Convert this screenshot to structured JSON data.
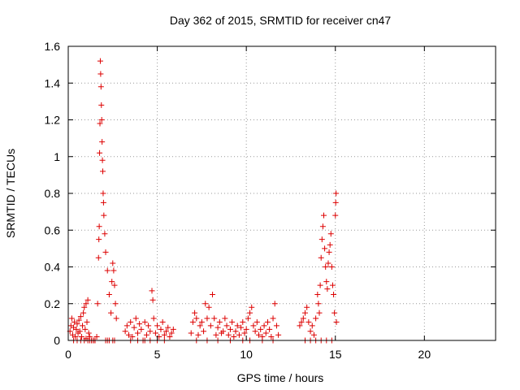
{
  "chart_data": {
    "type": "scatter",
    "title": "Day 362 of 2015, SRMTID for receiver cn47",
    "xlabel": "GPS time / hours",
    "ylabel": "SRMTID / TECUs",
    "xlim": [
      0,
      24
    ],
    "ylim": [
      0,
      1.6
    ],
    "xticks": [
      0,
      5,
      10,
      15,
      20
    ],
    "xtick_labels": [
      "0",
      "5",
      "10",
      "15",
      "20"
    ],
    "yticks": [
      0,
      0.2,
      0.4,
      0.6,
      0.8,
      1.0,
      1.2,
      1.4,
      1.6
    ],
    "ytick_labels": [
      "0",
      "0.2",
      "0.4",
      "0.6",
      "0.8",
      "1",
      "1.2",
      "1.4",
      "1.6"
    ],
    "grid": true,
    "marker": "+",
    "color": "#dd0000",
    "series": [
      {
        "name": "SRMTID",
        "x": [
          0.1,
          0.15,
          0.2,
          0.25,
          0.3,
          0.35,
          0.4,
          0.45,
          0.5,
          0.55,
          0.6,
          0.65,
          0.7,
          0.75,
          0.8,
          0.85,
          0.9,
          0.95,
          1.0,
          1.05,
          1.1,
          1.15,
          1.2,
          1.3,
          1.4,
          1.5,
          1.6,
          1.65,
          1.7,
          1.72,
          1.74,
          1.76,
          1.78,
          1.8,
          1.82,
          1.84,
          1.86,
          1.88,
          1.9,
          1.92,
          1.94,
          1.96,
          1.98,
          2.0,
          2.05,
          2.1,
          2.2,
          2.3,
          2.4,
          2.45,
          2.5,
          2.55,
          2.6,
          2.65,
          2.7,
          0.3,
          0.5,
          0.7,
          0.9,
          1.0,
          1.1,
          1.2,
          1.3,
          1.4,
          1.5,
          2.1,
          2.2,
          2.3,
          2.5,
          2.6,
          3.2,
          3.3,
          3.4,
          3.5,
          3.6,
          3.7,
          3.8,
          3.9,
          4.0,
          4.1,
          4.2,
          4.3,
          4.4,
          4.5,
          4.6,
          4.7,
          4.75,
          4.8,
          4.9,
          5.0,
          5.1,
          5.2,
          5.3,
          5.4,
          5.5,
          5.6,
          5.7,
          5.8,
          5.9,
          3.5,
          3.9,
          4.3,
          4.6,
          5.0,
          5.4,
          6.9,
          7.0,
          7.1,
          7.2,
          7.3,
          7.4,
          7.5,
          7.6,
          7.7,
          7.8,
          7.9,
          8.0,
          8.1,
          8.2,
          8.3,
          8.4,
          8.5,
          8.6,
          8.7,
          8.8,
          8.9,
          9.0,
          9.1,
          9.2,
          9.3,
          9.4,
          9.5,
          9.6,
          9.7,
          9.8,
          9.9,
          10.0,
          10.1,
          10.2,
          10.3,
          10.4,
          10.5,
          10.6,
          10.7,
          10.8,
          10.9,
          11.0,
          11.1,
          11.2,
          11.3,
          11.4,
          11.5,
          11.6,
          11.7,
          11.8,
          7.2,
          7.8,
          8.4,
          9.1,
          9.8,
          10.2,
          10.9,
          11.5,
          13.0,
          13.1,
          13.2,
          13.3,
          13.4,
          13.5,
          13.6,
          13.7,
          13.8,
          13.9,
          14.0,
          14.05,
          14.1,
          14.15,
          14.2,
          14.25,
          14.3,
          14.35,
          14.4,
          14.45,
          14.5,
          14.55,
          14.6,
          14.65,
          14.7,
          14.75,
          14.8,
          14.85,
          14.9,
          14.95,
          15.0,
          15.02,
          15.04,
          15.06,
          13.3,
          13.6,
          13.9,
          14.2,
          14.5,
          14.8
        ],
        "y": [
          0.05,
          0.08,
          0.12,
          0.03,
          0.07,
          0.1,
          0.02,
          0.06,
          0.09,
          0.04,
          0.11,
          0.05,
          0.13,
          0.02,
          0.08,
          0.15,
          0.18,
          0.06,
          0.2,
          0.1,
          0.22,
          0.04,
          0.0,
          0.0,
          0.0,
          0.0,
          0.02,
          0.2,
          0.45,
          0.55,
          0.62,
          1.02,
          1.18,
          1.52,
          1.45,
          1.38,
          1.28,
          1.2,
          1.08,
          0.98,
          0.92,
          0.8,
          0.75,
          0.68,
          0.58,
          0.48,
          0.38,
          0.25,
          0.15,
          0.32,
          0.42,
          0.38,
          0.3,
          0.2,
          0.12,
          0.0,
          0.0,
          0.0,
          0.0,
          0.01,
          0.0,
          0.02,
          0.0,
          0.0,
          0.0,
          0.0,
          0.0,
          0.0,
          0.0,
          0.0,
          0.05,
          0.08,
          0.03,
          0.1,
          0.02,
          0.07,
          0.12,
          0.04,
          0.09,
          0.06,
          0.0,
          0.1,
          0.03,
          0.08,
          0.05,
          0.27,
          0.22,
          0.12,
          0.04,
          0.08,
          0.02,
          0.06,
          0.1,
          0.03,
          0.05,
          0.07,
          0.02,
          0.04,
          0.06,
          0.0,
          0.0,
          0.0,
          0.0,
          0.0,
          0.0,
          0.04,
          0.1,
          0.15,
          0.12,
          0.03,
          0.08,
          0.1,
          0.05,
          0.2,
          0.12,
          0.18,
          0.08,
          0.25,
          0.12,
          0.03,
          0.07,
          0.1,
          0.04,
          0.05,
          0.12,
          0.08,
          0.03,
          0.06,
          0.1,
          0.02,
          0.05,
          0.08,
          0.03,
          0.07,
          0.1,
          0.04,
          0.06,
          0.12,
          0.15,
          0.18,
          0.08,
          0.05,
          0.1,
          0.03,
          0.06,
          0.02,
          0.08,
          0.04,
          0.1,
          0.06,
          0.02,
          0.12,
          0.2,
          0.08,
          0.03,
          0.0,
          0.0,
          0.0,
          0.0,
          0.0,
          0.0,
          0.0,
          0.0,
          0.08,
          0.1,
          0.12,
          0.15,
          0.18,
          0.1,
          0.05,
          0.08,
          0.03,
          0.12,
          0.25,
          0.2,
          0.15,
          0.3,
          0.45,
          0.55,
          0.62,
          0.68,
          0.5,
          0.4,
          0.32,
          0.28,
          0.42,
          0.48,
          0.52,
          0.58,
          0.4,
          0.3,
          0.25,
          0.15,
          0.68,
          0.75,
          0.8,
          0.1,
          0.0,
          0.0,
          0.0,
          0.0,
          0.0,
          0.0
        ]
      }
    ]
  }
}
